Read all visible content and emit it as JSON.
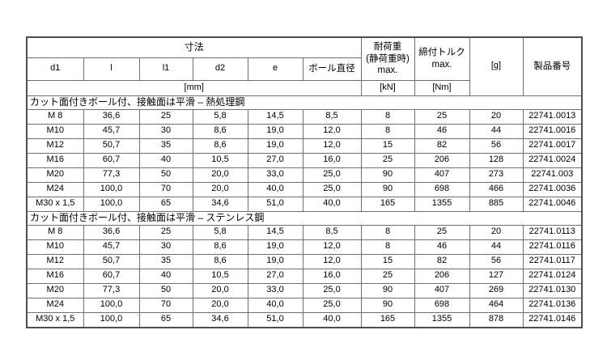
{
  "table": {
    "header": {
      "dim_group": "寸法",
      "dim_cols": [
        "d1",
        "l",
        "l1",
        "d2",
        "e",
        "ボール直径"
      ],
      "dim_unit": "[mm]",
      "load": {
        "line1": "耐荷重",
        "line2": "(静荷重時)",
        "line3": "max.",
        "unit": "[kN]"
      },
      "torque": {
        "line1": "締付トルク",
        "line2": "max.",
        "unit": "[Nm]"
      },
      "weight": "[g]",
      "product": "製品番号"
    },
    "sections": [
      {
        "title": "カット面付きボール付、接触面は平滑 – 熱処理鋼",
        "rows": [
          [
            "M 8",
            "36,6",
            "25",
            "5,8",
            "14,5",
            "8,5",
            "8",
            "25",
            "20",
            "22741.0013"
          ],
          [
            "M10",
            "45,7",
            "30",
            "8,6",
            "19,0",
            "12,0",
            "8",
            "46",
            "44",
            "22741.0016"
          ],
          [
            "M12",
            "50,7",
            "35",
            "8,6",
            "19,0",
            "12,0",
            "15",
            "82",
            "56",
            "22741.0017"
          ],
          [
            "M16",
            "60,7",
            "40",
            "10,5",
            "27,0",
            "16,0",
            "25",
            "206",
            "128",
            "22741.0024"
          ],
          [
            "M20",
            "77,3",
            "50",
            "20,0",
            "33,0",
            "25,0",
            "90",
            "407",
            "273",
            "22741.003"
          ],
          [
            "M24",
            "100,0",
            "70",
            "20,0",
            "40,0",
            "25,0",
            "90",
            "698",
            "466",
            "22741.0036"
          ],
          [
            "M30 x 1,5",
            "100,0",
            "65",
            "34,6",
            "51,0",
            "40,0",
            "165",
            "1355",
            "885",
            "22741.0046"
          ]
        ]
      },
      {
        "title": "カット面付きボール付、接触面は平滑 – ステンレス鋼",
        "rows": [
          [
            "M 8",
            "36,6",
            "25",
            "5,8",
            "14,5",
            "8,5",
            "8",
            "25",
            "20",
            "22741.0113"
          ],
          [
            "M10",
            "45,7",
            "30",
            "8,6",
            "19,0",
            "12,0",
            "8",
            "46",
            "44",
            "22741.0116"
          ],
          [
            "M12",
            "50,7",
            "35",
            "8,6",
            "19,0",
            "12,0",
            "15",
            "82",
            "56",
            "22741.0117"
          ],
          [
            "M16",
            "60,7",
            "40",
            "10,5",
            "27,0",
            "16,0",
            "25",
            "206",
            "127",
            "22741.0124"
          ],
          [
            "M20",
            "77,3",
            "50",
            "20,0",
            "33,0",
            "25,0",
            "90",
            "407",
            "269",
            "22741.0130"
          ],
          [
            "M24",
            "100,0",
            "70",
            "20,0",
            "40,0",
            "25,0",
            "90",
            "698",
            "464",
            "22741.0136"
          ],
          [
            "M30 x 1,5",
            "100,0",
            "65",
            "34,6",
            "51,0",
            "40,0",
            "165",
            "1355",
            "878",
            "22741.0146"
          ]
        ]
      }
    ]
  },
  "colors": {
    "border_inner": "#6f6f6f",
    "border_outer": "#4d4d4d",
    "text": "#000000",
    "background": "#ffffff"
  }
}
